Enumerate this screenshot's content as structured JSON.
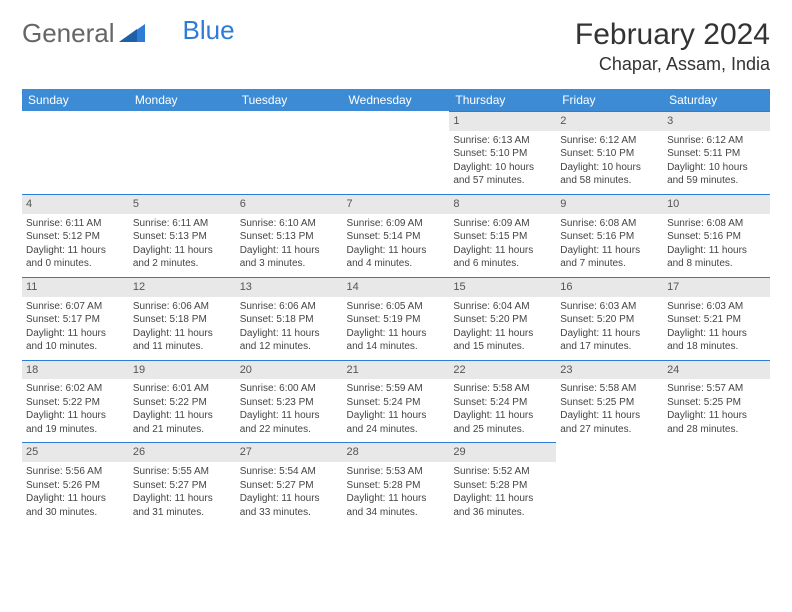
{
  "logo": {
    "general": "General",
    "blue": "Blue"
  },
  "title": "February 2024",
  "location": "Chapar, Assam, India",
  "colors": {
    "header_bg": "#3d8bd4",
    "accent": "#2e7cd6",
    "daynum_bg": "#e8e8e8",
    "page_bg": "#ffffff",
    "text": "#444444"
  },
  "days": [
    "Sunday",
    "Monday",
    "Tuesday",
    "Wednesday",
    "Thursday",
    "Friday",
    "Saturday"
  ],
  "grid": [
    [
      null,
      null,
      null,
      null,
      {
        "n": "1",
        "sr": "Sunrise: 6:13 AM",
        "ss": "Sunset: 5:10 PM",
        "d1": "Daylight: 10 hours",
        "d2": "and 57 minutes."
      },
      {
        "n": "2",
        "sr": "Sunrise: 6:12 AM",
        "ss": "Sunset: 5:10 PM",
        "d1": "Daylight: 10 hours",
        "d2": "and 58 minutes."
      },
      {
        "n": "3",
        "sr": "Sunrise: 6:12 AM",
        "ss": "Sunset: 5:11 PM",
        "d1": "Daylight: 10 hours",
        "d2": "and 59 minutes."
      }
    ],
    [
      {
        "n": "4",
        "sr": "Sunrise: 6:11 AM",
        "ss": "Sunset: 5:12 PM",
        "d1": "Daylight: 11 hours",
        "d2": "and 0 minutes."
      },
      {
        "n": "5",
        "sr": "Sunrise: 6:11 AM",
        "ss": "Sunset: 5:13 PM",
        "d1": "Daylight: 11 hours",
        "d2": "and 2 minutes."
      },
      {
        "n": "6",
        "sr": "Sunrise: 6:10 AM",
        "ss": "Sunset: 5:13 PM",
        "d1": "Daylight: 11 hours",
        "d2": "and 3 minutes."
      },
      {
        "n": "7",
        "sr": "Sunrise: 6:09 AM",
        "ss": "Sunset: 5:14 PM",
        "d1": "Daylight: 11 hours",
        "d2": "and 4 minutes."
      },
      {
        "n": "8",
        "sr": "Sunrise: 6:09 AM",
        "ss": "Sunset: 5:15 PM",
        "d1": "Daylight: 11 hours",
        "d2": "and 6 minutes."
      },
      {
        "n": "9",
        "sr": "Sunrise: 6:08 AM",
        "ss": "Sunset: 5:16 PM",
        "d1": "Daylight: 11 hours",
        "d2": "and 7 minutes."
      },
      {
        "n": "10",
        "sr": "Sunrise: 6:08 AM",
        "ss": "Sunset: 5:16 PM",
        "d1": "Daylight: 11 hours",
        "d2": "and 8 minutes."
      }
    ],
    [
      {
        "n": "11",
        "sr": "Sunrise: 6:07 AM",
        "ss": "Sunset: 5:17 PM",
        "d1": "Daylight: 11 hours",
        "d2": "and 10 minutes."
      },
      {
        "n": "12",
        "sr": "Sunrise: 6:06 AM",
        "ss": "Sunset: 5:18 PM",
        "d1": "Daylight: 11 hours",
        "d2": "and 11 minutes."
      },
      {
        "n": "13",
        "sr": "Sunrise: 6:06 AM",
        "ss": "Sunset: 5:18 PM",
        "d1": "Daylight: 11 hours",
        "d2": "and 12 minutes."
      },
      {
        "n": "14",
        "sr": "Sunrise: 6:05 AM",
        "ss": "Sunset: 5:19 PM",
        "d1": "Daylight: 11 hours",
        "d2": "and 14 minutes."
      },
      {
        "n": "15",
        "sr": "Sunrise: 6:04 AM",
        "ss": "Sunset: 5:20 PM",
        "d1": "Daylight: 11 hours",
        "d2": "and 15 minutes."
      },
      {
        "n": "16",
        "sr": "Sunrise: 6:03 AM",
        "ss": "Sunset: 5:20 PM",
        "d1": "Daylight: 11 hours",
        "d2": "and 17 minutes."
      },
      {
        "n": "17",
        "sr": "Sunrise: 6:03 AM",
        "ss": "Sunset: 5:21 PM",
        "d1": "Daylight: 11 hours",
        "d2": "and 18 minutes."
      }
    ],
    [
      {
        "n": "18",
        "sr": "Sunrise: 6:02 AM",
        "ss": "Sunset: 5:22 PM",
        "d1": "Daylight: 11 hours",
        "d2": "and 19 minutes."
      },
      {
        "n": "19",
        "sr": "Sunrise: 6:01 AM",
        "ss": "Sunset: 5:22 PM",
        "d1": "Daylight: 11 hours",
        "d2": "and 21 minutes."
      },
      {
        "n": "20",
        "sr": "Sunrise: 6:00 AM",
        "ss": "Sunset: 5:23 PM",
        "d1": "Daylight: 11 hours",
        "d2": "and 22 minutes."
      },
      {
        "n": "21",
        "sr": "Sunrise: 5:59 AM",
        "ss": "Sunset: 5:24 PM",
        "d1": "Daylight: 11 hours",
        "d2": "and 24 minutes."
      },
      {
        "n": "22",
        "sr": "Sunrise: 5:58 AM",
        "ss": "Sunset: 5:24 PM",
        "d1": "Daylight: 11 hours",
        "d2": "and 25 minutes."
      },
      {
        "n": "23",
        "sr": "Sunrise: 5:58 AM",
        "ss": "Sunset: 5:25 PM",
        "d1": "Daylight: 11 hours",
        "d2": "and 27 minutes."
      },
      {
        "n": "24",
        "sr": "Sunrise: 5:57 AM",
        "ss": "Sunset: 5:25 PM",
        "d1": "Daylight: 11 hours",
        "d2": "and 28 minutes."
      }
    ],
    [
      {
        "n": "25",
        "sr": "Sunrise: 5:56 AM",
        "ss": "Sunset: 5:26 PM",
        "d1": "Daylight: 11 hours",
        "d2": "and 30 minutes."
      },
      {
        "n": "26",
        "sr": "Sunrise: 5:55 AM",
        "ss": "Sunset: 5:27 PM",
        "d1": "Daylight: 11 hours",
        "d2": "and 31 minutes."
      },
      {
        "n": "27",
        "sr": "Sunrise: 5:54 AM",
        "ss": "Sunset: 5:27 PM",
        "d1": "Daylight: 11 hours",
        "d2": "and 33 minutes."
      },
      {
        "n": "28",
        "sr": "Sunrise: 5:53 AM",
        "ss": "Sunset: 5:28 PM",
        "d1": "Daylight: 11 hours",
        "d2": "and 34 minutes."
      },
      {
        "n": "29",
        "sr": "Sunrise: 5:52 AM",
        "ss": "Sunset: 5:28 PM",
        "d1": "Daylight: 11 hours",
        "d2": "and 36 minutes."
      },
      null,
      null
    ]
  ]
}
